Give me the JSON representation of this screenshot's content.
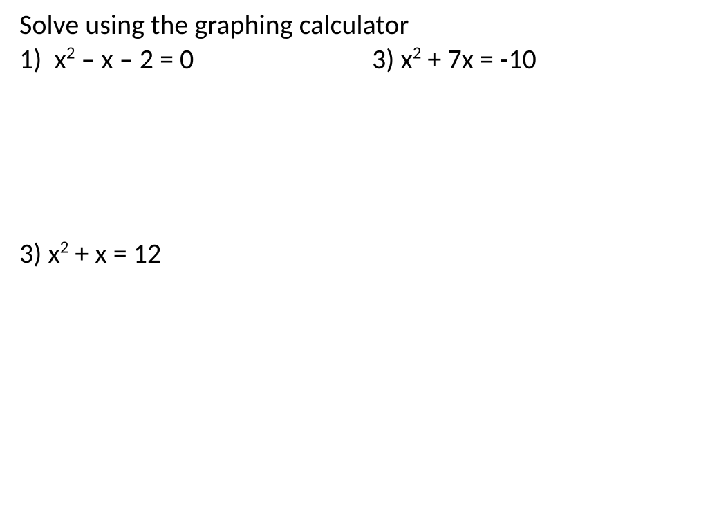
{
  "title": "Solve using the graphing calculator",
  "problems": {
    "p1": {
      "label": "1)",
      "pre": "x",
      "exp": "2",
      "post": " – x – 2 = 0"
    },
    "p2": {
      "label": "3)",
      "pre": "x",
      "exp": "2",
      "post": " + 7x = -10"
    },
    "p3": {
      "label": "3)",
      "pre": "x",
      "exp": "2",
      "post": " + x = 12"
    }
  },
  "style": {
    "font_family": "Calibri",
    "font_size_pt": 30,
    "text_color": "#000000",
    "background_color": "#ffffff"
  }
}
